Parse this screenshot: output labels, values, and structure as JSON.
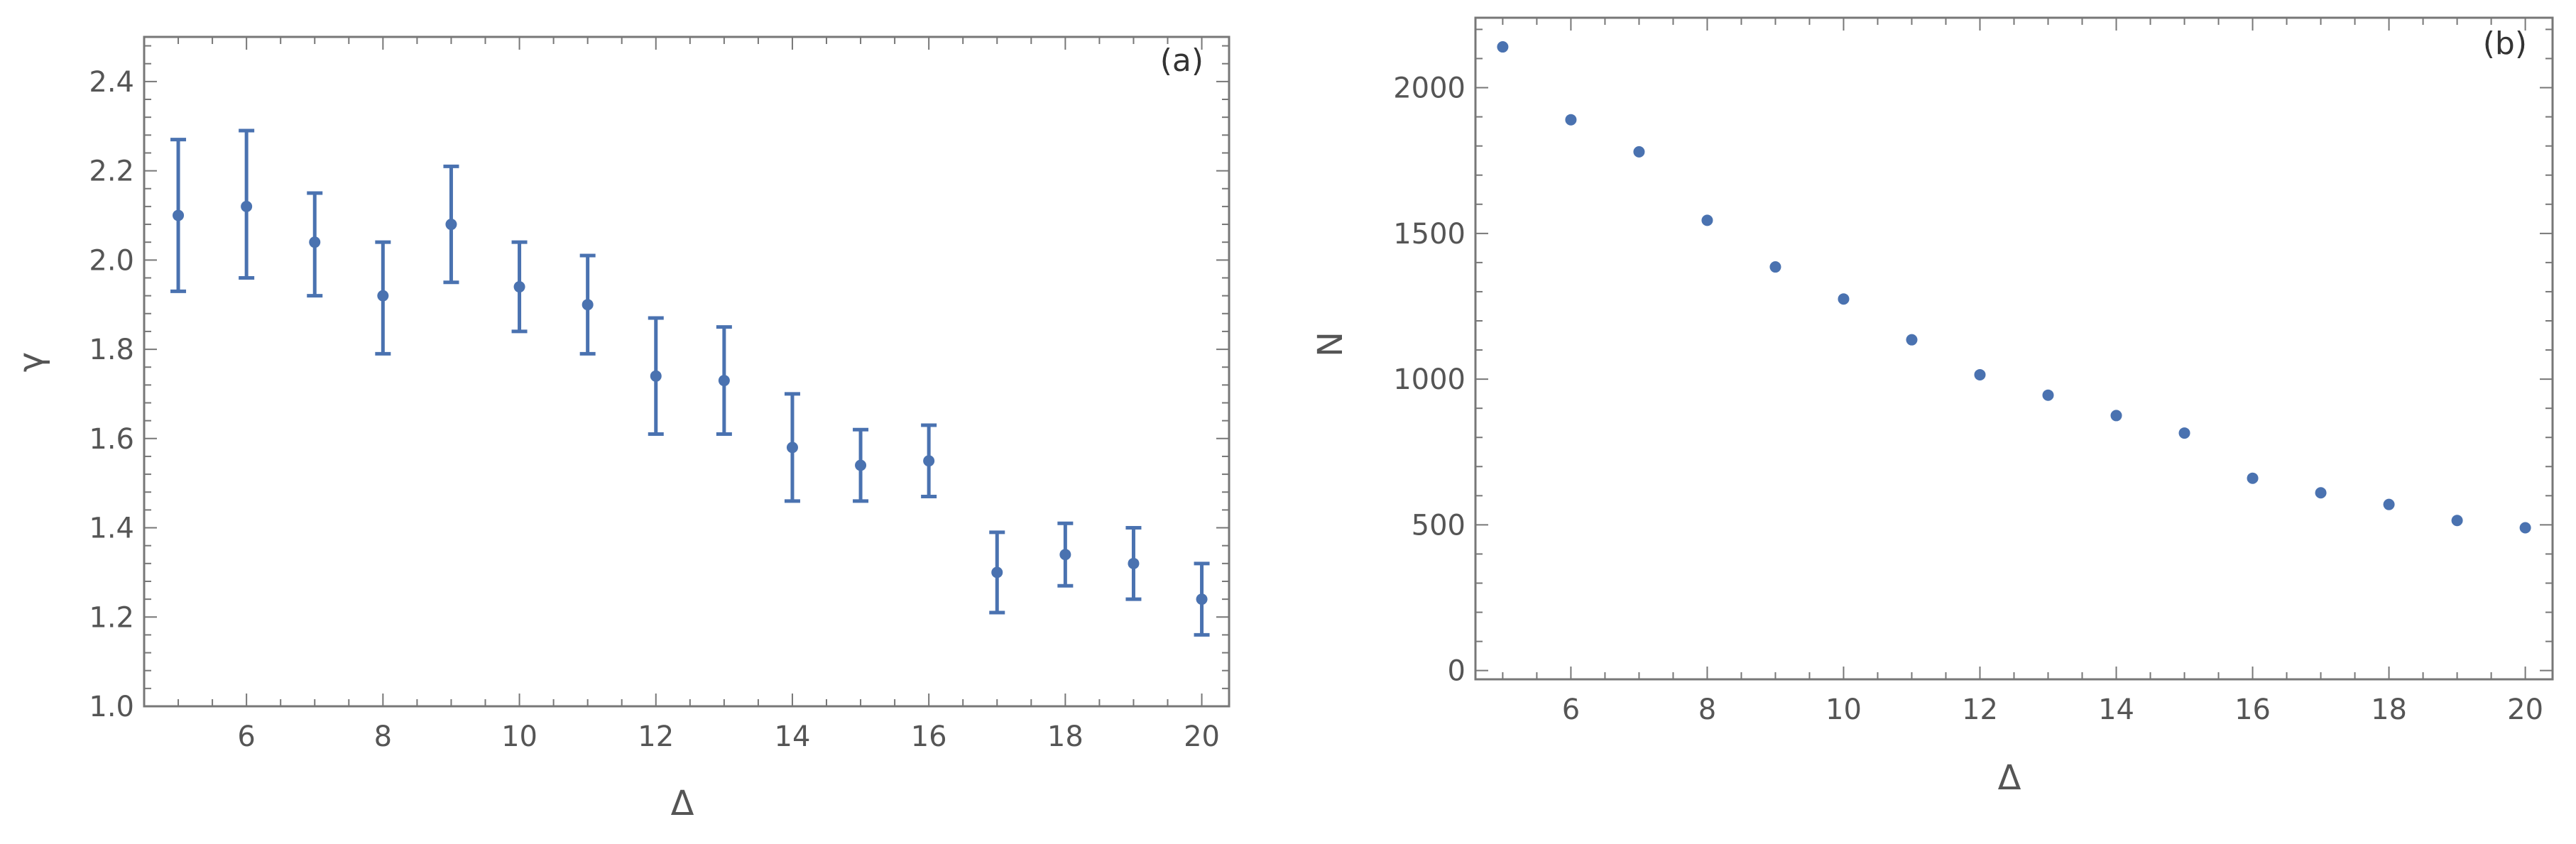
{
  "colors": {
    "marker": "#4a72b0",
    "frame": "#777777",
    "tick_text": "#555555"
  },
  "chart_data": [
    {
      "type": "scatter",
      "panel_tag": "(a)",
      "xlabel": "Δ",
      "ylabel": "γ",
      "xlim": [
        4.5,
        20.4
      ],
      "ylim": [
        1.0,
        2.5
      ],
      "xticks": [
        6,
        8,
        10,
        12,
        14,
        16,
        18,
        20
      ],
      "yticks": [
        1.0,
        1.2,
        1.4,
        1.6,
        1.8,
        2.0,
        2.2,
        2.4
      ],
      "ytick_labels": [
        "1.0",
        "1.2",
        "1.4",
        "1.6",
        "1.8",
        "2.0",
        "2.2",
        "2.4"
      ],
      "error_bars": true,
      "series": [
        {
          "x": [
            5,
            6,
            7,
            8,
            9,
            10,
            11,
            12,
            13,
            14,
            15,
            16,
            17,
            18,
            19,
            20
          ],
          "y": [
            2.1,
            2.12,
            2.04,
            1.92,
            2.08,
            1.94,
            1.9,
            1.74,
            1.73,
            1.58,
            1.54,
            1.55,
            1.3,
            1.34,
            1.32,
            1.24
          ],
          "y_low": [
            1.93,
            1.96,
            1.92,
            1.79,
            1.95,
            1.84,
            1.79,
            1.61,
            1.61,
            1.46,
            1.46,
            1.47,
            1.21,
            1.27,
            1.24,
            1.16
          ],
          "y_high": [
            2.27,
            2.29,
            2.15,
            2.04,
            2.21,
            2.04,
            2.01,
            1.87,
            1.85,
            1.7,
            1.62,
            1.63,
            1.39,
            1.41,
            1.4,
            1.32
          ]
        }
      ]
    },
    {
      "type": "scatter",
      "panel_tag": "(b)",
      "xlabel": "Δ",
      "ylabel": "N",
      "xlim": [
        4.6,
        20.4
      ],
      "ylim": [
        -30,
        2240
      ],
      "xticks": [
        6,
        8,
        10,
        12,
        14,
        16,
        18,
        20
      ],
      "yticks": [
        0,
        500,
        1000,
        1500,
        2000
      ],
      "ytick_labels": [
        "0",
        "500",
        "1000",
        "1500",
        "2000"
      ],
      "error_bars": false,
      "series": [
        {
          "x": [
            5,
            6,
            7,
            8,
            9,
            10,
            11,
            12,
            13,
            14,
            15,
            16,
            17,
            18,
            19,
            20
          ],
          "y": [
            2140,
            1890,
            1780,
            1545,
            1385,
            1275,
            1135,
            1015,
            945,
            875,
            815,
            660,
            610,
            570,
            515,
            490
          ]
        }
      ]
    }
  ]
}
